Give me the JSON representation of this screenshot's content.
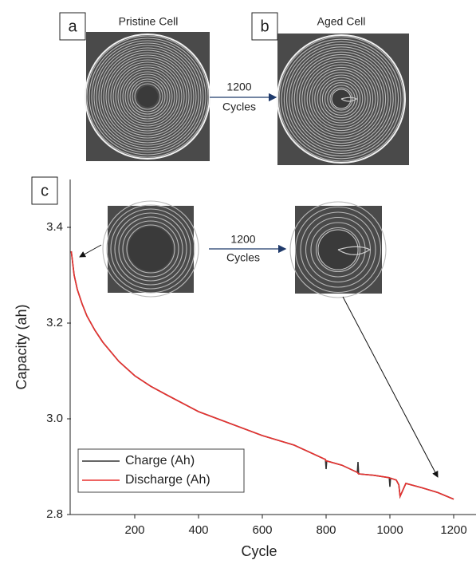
{
  "chart_data": {
    "type": "line",
    "annotations": [
      "a",
      "b",
      "c",
      "Pristine Cell",
      "Aged Cell",
      "1200",
      "Cycles",
      "1200",
      "Cycles"
    ],
    "x_label": "Cycle",
    "y_label": "Capacity (ah)",
    "x": [
      1,
      10,
      20,
      35,
      50,
      75,
      100,
      150,
      200,
      250,
      300,
      400,
      500,
      600,
      700,
      798,
      800,
      802,
      850,
      898,
      900,
      902,
      950,
      998,
      1000,
      1002,
      1020,
      1028,
      1032,
      1050,
      1100,
      1150,
      1200
    ],
    "series": [
      {
        "name": "Charge (Ah)",
        "color": "#333333",
        "values": [
          3.35,
          3.3,
          3.27,
          3.24,
          3.215,
          3.185,
          3.16,
          3.12,
          3.09,
          3.068,
          3.05,
          3.015,
          2.99,
          2.965,
          2.945,
          2.915,
          2.895,
          2.912,
          2.903,
          2.888,
          2.91,
          2.885,
          2.882,
          2.877,
          2.858,
          2.876,
          2.872,
          2.862,
          2.838,
          2.865,
          2.856,
          2.846,
          2.832
        ]
      },
      {
        "name": "Discharge (Ah)",
        "color": "#e8312f",
        "values": [
          3.35,
          3.3,
          3.27,
          3.24,
          3.215,
          3.185,
          3.16,
          3.12,
          3.09,
          3.068,
          3.05,
          3.015,
          2.99,
          2.965,
          2.945,
          2.915,
          2.912,
          2.912,
          2.903,
          2.888,
          2.886,
          2.885,
          2.882,
          2.877,
          2.876,
          2.876,
          2.872,
          2.862,
          2.838,
          2.865,
          2.856,
          2.846,
          2.832
        ]
      }
    ],
    "xlim": [
      0,
      1270
    ],
    "ylim": [
      2.8,
      3.5
    ],
    "xticks": [
      200,
      400,
      600,
      800,
      1000,
      1200
    ],
    "yticks": [
      2.8,
      {
        "value": 3,
        "label": "3.0"
      },
      3.2,
      3.4
    ],
    "legend": "lower-left"
  }
}
